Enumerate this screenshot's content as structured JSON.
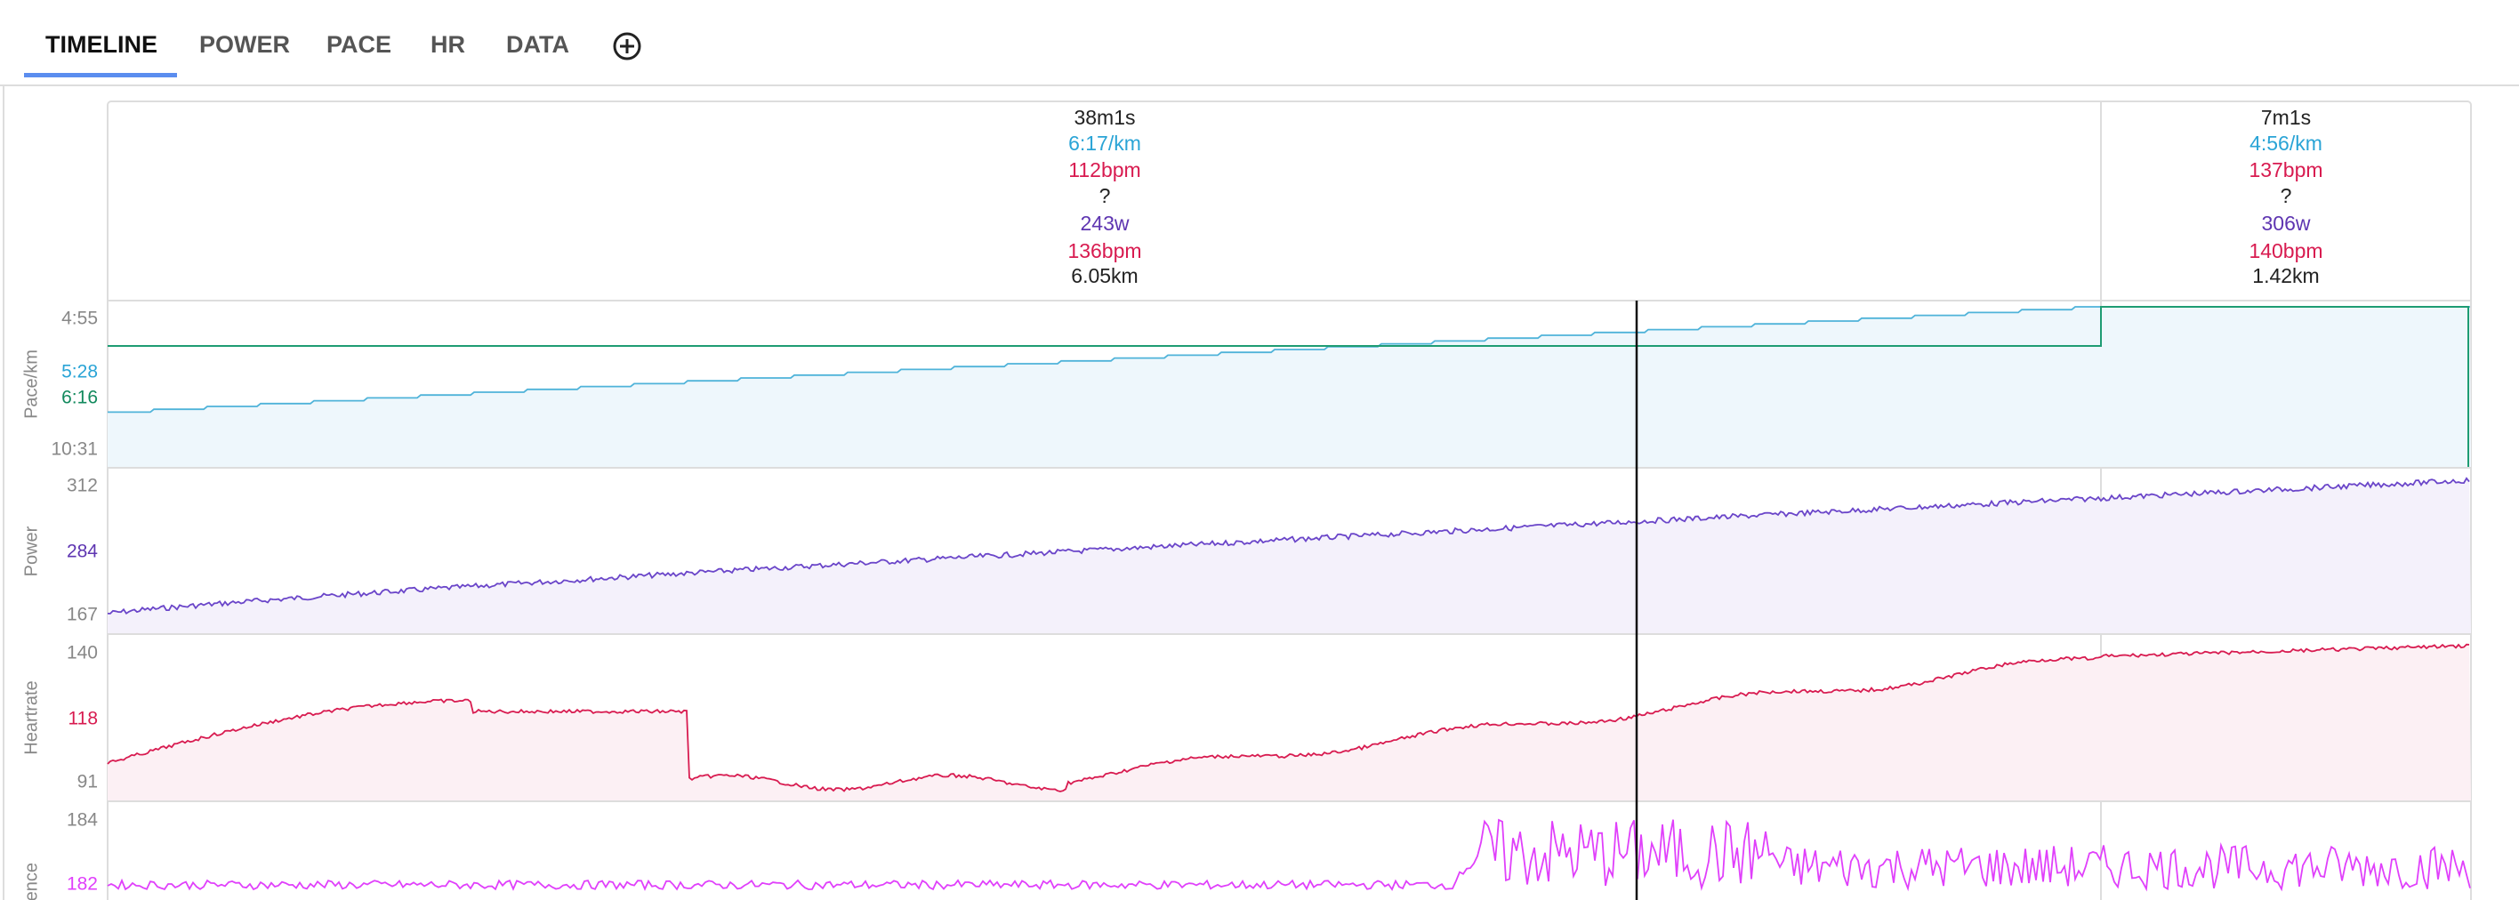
{
  "tabs": [
    "TIMELINE",
    "POWER",
    "PACE",
    "HR",
    "DATA"
  ],
  "intervals": [
    {
      "duration": "38m1s",
      "pace": "6:17/km",
      "hr": "112bpm",
      "unknown": "?",
      "power": "243w",
      "max_hr": "136bpm",
      "distance": "6.05km"
    },
    {
      "duration": "7m1s",
      "pace": "4:56/km",
      "hr": "137bpm",
      "unknown": "?",
      "power": "306w",
      "max_hr": "140bpm",
      "distance": "1.42km"
    }
  ],
  "panels": [
    {
      "label": "Pace/km",
      "ticks": [
        "4:55",
        "5:28",
        "6:16",
        "10:31"
      ]
    },
    {
      "label": "Power",
      "ticks": [
        "312",
        "284",
        "167"
      ]
    },
    {
      "label": "Heartrate",
      "ticks": [
        "140",
        "118",
        "91"
      ]
    },
    {
      "label": "Cadence",
      "ticks": [
        "184",
        "182"
      ]
    }
  ]
}
